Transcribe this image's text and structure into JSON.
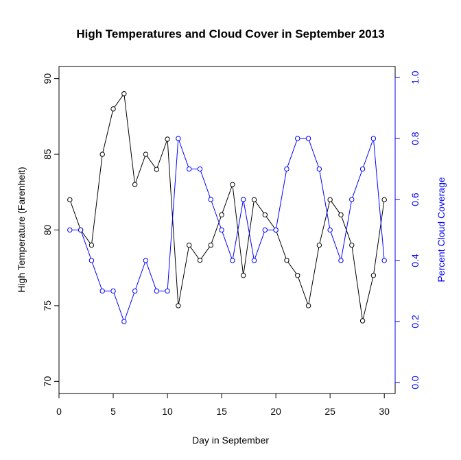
{
  "chart_data": {
    "type": "line",
    "title": "High Temperatures and Cloud Cover in September 2013",
    "xlabel": "Day in September",
    "ylabel": "High Temperature (Farenheit)",
    "ylabel_right": "Percent Cloud Coverage",
    "xlim": [
      0,
      31
    ],
    "ylim": [
      69.2,
      90.8
    ],
    "ylim_right": [
      -0.036,
      1.036
    ],
    "x_ticks": [
      0,
      5,
      10,
      15,
      20,
      25,
      30
    ],
    "y_ticks": [
      70,
      75,
      80,
      85,
      90
    ],
    "y_ticks_right": [
      0.0,
      0.2,
      0.4,
      0.6,
      0.8,
      1.0
    ],
    "x_tick_labels": [
      "0",
      "5",
      "10",
      "15",
      "20",
      "25",
      "30"
    ],
    "y_tick_labels": [
      "70",
      "75",
      "80",
      "85",
      "90"
    ],
    "y_tick_labels_right": [
      "0.0",
      "0.2",
      "0.4",
      "0.6",
      "0.8",
      "1.0"
    ],
    "x": [
      1,
      2,
      3,
      4,
      5,
      6,
      7,
      8,
      9,
      10,
      11,
      12,
      13,
      14,
      15,
      16,
      17,
      18,
      19,
      20,
      21,
      22,
      23,
      24,
      25,
      26,
      27,
      28,
      29,
      30
    ],
    "series": [
      {
        "axis": "left",
        "color": "#000000",
        "values": [
          82,
          80,
          79,
          85,
          88,
          89,
          83,
          85,
          84,
          86,
          75,
          79,
          78,
          79,
          81,
          83,
          77,
          82,
          81,
          80,
          78,
          77,
          75,
          79,
          82,
          81,
          79,
          74,
          77,
          82
        ]
      },
      {
        "axis": "right",
        "color": "#0000ff",
        "values": [
          0.5,
          0.5,
          0.4,
          0.3,
          0.3,
          0.2,
          0.3,
          0.4,
          0.3,
          0.3,
          0.8,
          0.7,
          0.7,
          0.6,
          0.5,
          0.4,
          0.6,
          0.4,
          0.5,
          0.5,
          0.7,
          0.8,
          0.8,
          0.7,
          0.5,
          0.4,
          0.6,
          0.7,
          0.8,
          0.4
        ]
      }
    ]
  }
}
